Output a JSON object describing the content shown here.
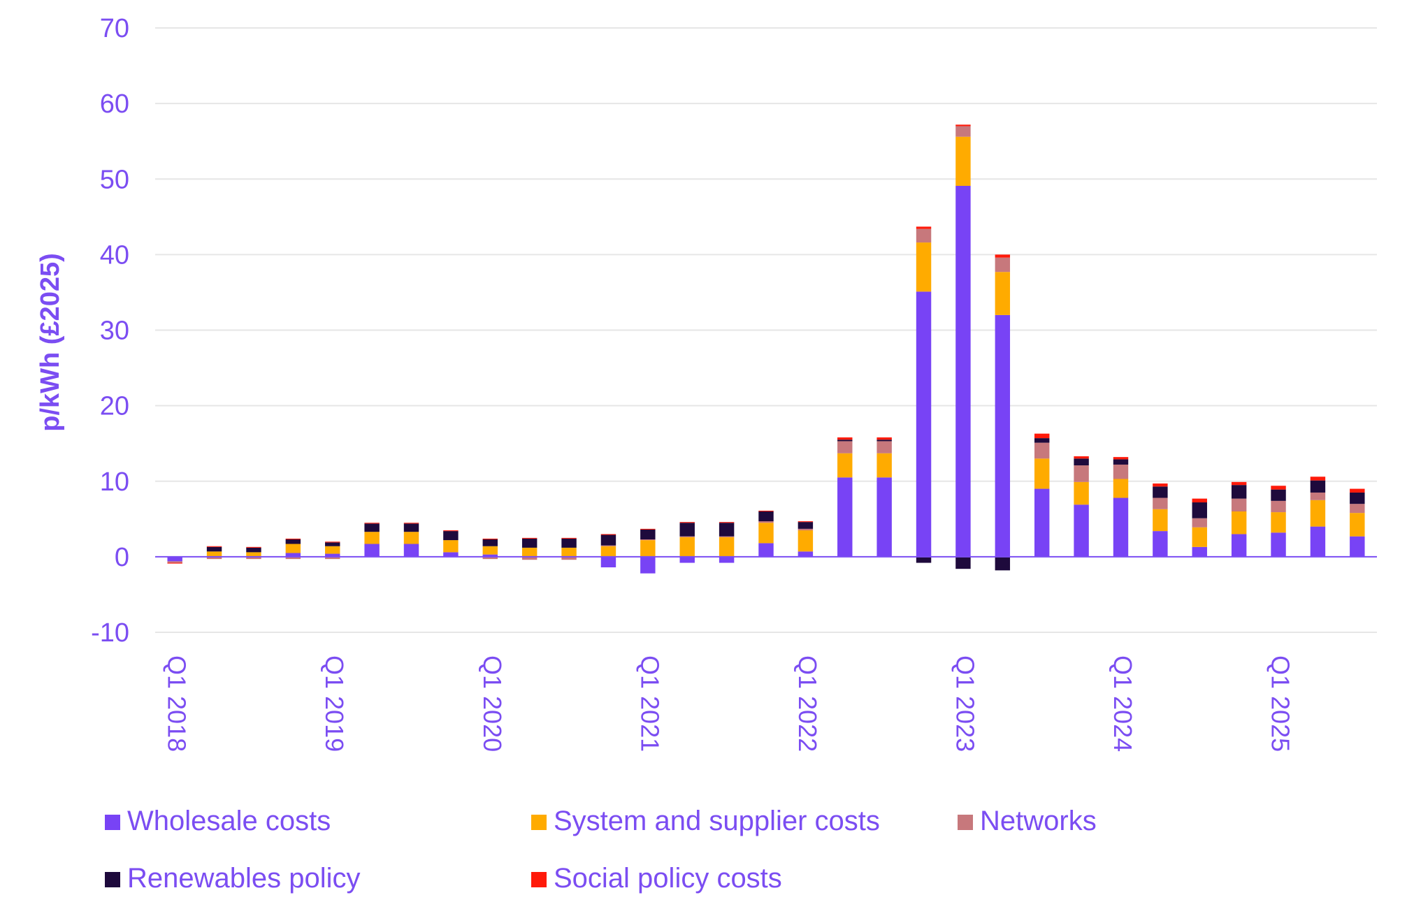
{
  "chart_data": {
    "type": "bar",
    "stacked": true,
    "title": "",
    "xlabel": "",
    "ylabel": "p/kWh (£2025)",
    "ylim": [
      -10,
      70
    ],
    "yticks": [
      -10,
      0,
      10,
      20,
      30,
      40,
      50,
      60,
      70
    ],
    "grid": true,
    "legend_position": "bottom",
    "categories": [
      "Q1 2018",
      "Q2 2018",
      "Q3 2018",
      "Q4 2018",
      "Q1 2019",
      "Q2 2019",
      "Q3 2019",
      "Q4 2019",
      "Q1 2020",
      "Q2 2020",
      "Q3 2020",
      "Q4 2020",
      "Q1 2021",
      "Q2 2021",
      "Q3 2021",
      "Q4 2021",
      "Q1 2022",
      "Q2 2022",
      "Q3 2022",
      "Q4 2022",
      "Q1 2023",
      "Q2 2023",
      "Q3 2023",
      "Q4 2023",
      "Q1 2024",
      "Q2 2024",
      "Q3 2024",
      "Q4 2024",
      "Q1 2025",
      "Q2 2025",
      "Q3 2025"
    ],
    "x_tick_labels": [
      "Q1 2018",
      "",
      "",
      "",
      "Q1 2019",
      "",
      "",
      "",
      "Q1 2020",
      "",
      "",
      "",
      "Q1 2021",
      "",
      "",
      "",
      "Q1 2022",
      "",
      "",
      "",
      "Q1 2023",
      "",
      "",
      "",
      "Q1 2024",
      "",
      "",
      "",
      "Q1 2025",
      "",
      ""
    ],
    "series": [
      {
        "name": "Wholesale costs",
        "color": "#7843f5",
        "values": [
          -0.6,
          0.0,
          0.0,
          0.5,
          0.4,
          1.7,
          1.7,
          0.6,
          0.3,
          0.0,
          0.0,
          -1.4,
          -2.2,
          -0.8,
          -0.8,
          1.8,
          0.7,
          10.5,
          10.5,
          35.1,
          49.1,
          32.0,
          9.0,
          6.9,
          7.8,
          3.4,
          1.3,
          3.0,
          3.2,
          4.0,
          2.7
        ]
      },
      {
        "name": "System and supplier costs",
        "color": "#ffab00",
        "values": [
          0.0,
          0.7,
          0.6,
          1.2,
          1.0,
          1.6,
          1.6,
          1.6,
          1.1,
          1.2,
          1.2,
          1.4,
          2.2,
          2.6,
          2.6,
          2.7,
          2.8,
          3.2,
          3.2,
          6.5,
          6.5,
          5.7,
          4.0,
          3.0,
          2.5,
          2.9,
          2.6,
          3.0,
          2.7,
          3.5,
          3.1
        ]
      },
      {
        "name": "Networks",
        "color": "#c7787c",
        "values": [
          -0.2,
          -0.3,
          -0.3,
          -0.3,
          -0.3,
          0.0,
          0.0,
          0.0,
          -0.3,
          -0.4,
          -0.4,
          0.1,
          0.1,
          0.1,
          0.1,
          0.2,
          0.2,
          1.6,
          1.6,
          1.8,
          1.4,
          1.9,
          2.1,
          2.2,
          1.9,
          1.5,
          1.2,
          1.7,
          1.5,
          1.0,
          1.2
        ]
      },
      {
        "name": "Renewables policy",
        "color": "#1e0a3c",
        "values": [
          0.0,
          0.6,
          0.6,
          0.6,
          0.5,
          1.1,
          1.1,
          1.2,
          0.9,
          1.2,
          1.2,
          1.4,
          1.3,
          1.8,
          1.8,
          1.3,
          0.9,
          0.2,
          0.2,
          -0.8,
          -1.6,
          -1.8,
          0.6,
          0.9,
          0.7,
          1.5,
          2.1,
          1.8,
          1.5,
          1.6,
          1.5
        ]
      },
      {
        "name": "Social policy costs",
        "color": "#ff1a0a",
        "values": [
          -0.1,
          0.1,
          0.1,
          0.1,
          0.1,
          0.1,
          0.1,
          0.1,
          0.1,
          0.1,
          0.1,
          0.1,
          0.1,
          0.1,
          0.1,
          0.1,
          0.1,
          0.3,
          0.3,
          0.3,
          0.2,
          0.4,
          0.6,
          0.3,
          0.3,
          0.4,
          0.5,
          0.4,
          0.5,
          0.5,
          0.5
        ]
      }
    ]
  }
}
